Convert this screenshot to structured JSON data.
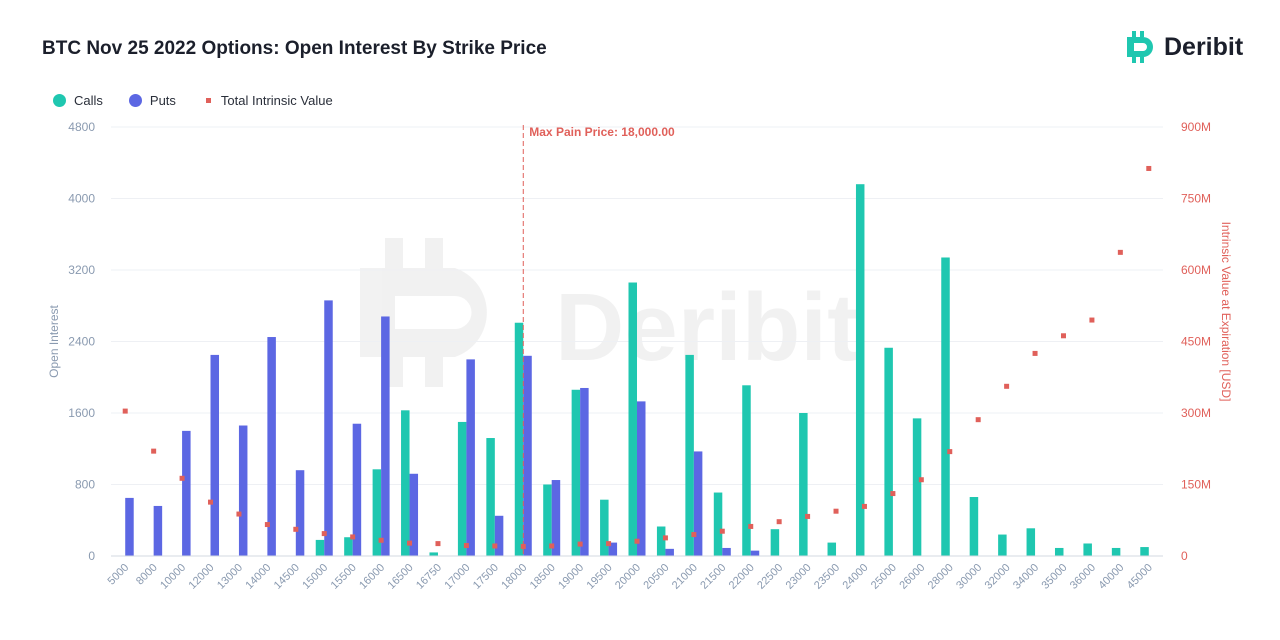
{
  "title": "BTC Nov 25 2022 Options: Open Interest By Strike Price",
  "brand": {
    "name": "Deribit",
    "icon": "deribit-logo-icon",
    "watermark": "Deribit"
  },
  "legend": [
    {
      "label": "Calls",
      "color": "#1fc7b0",
      "shape": "circle"
    },
    {
      "label": "Puts",
      "color": "#5c67e3",
      "shape": "circle"
    },
    {
      "label": "Total Intrinsic Value",
      "color": "#e0605a",
      "shape": "square"
    }
  ],
  "annotation": {
    "label": "Max Pain Price: 18,000.00",
    "strike": "18000"
  },
  "chart_data": {
    "type": "bar",
    "title": "BTC Nov 25 2022 Options: Open Interest By Strike Price",
    "xlabel": "",
    "ylabel": "Open Interest",
    "y2label": "Intrinsic Value at Expiration [USD]",
    "ylim": [
      0,
      4800
    ],
    "y2lim": [
      0,
      900000000
    ],
    "yticks": [
      "0",
      "800",
      "1600",
      "2400",
      "3200",
      "4000",
      "4800"
    ],
    "y2ticks": [
      "0",
      "150M",
      "300M",
      "450M",
      "600M",
      "750M",
      "900M"
    ],
    "categories": [
      "5000",
      "8000",
      "10000",
      "12000",
      "13000",
      "14000",
      "14500",
      "15000",
      "15500",
      "16000",
      "16500",
      "16750",
      "17000",
      "17500",
      "18000",
      "18500",
      "19000",
      "19500",
      "20000",
      "20500",
      "21000",
      "21500",
      "22000",
      "22500",
      "23000",
      "23500",
      "24000",
      "25000",
      "26000",
      "28000",
      "30000",
      "32000",
      "34000",
      "35000",
      "36000",
      "40000",
      "45000"
    ],
    "series": [
      {
        "name": "Calls",
        "type": "bar",
        "color": "#1fc7b0",
        "values": [
          0,
          0,
          0,
          0,
          0,
          0,
          0,
          180,
          210,
          970,
          1630,
          40,
          1500,
          1320,
          2610,
          800,
          1860,
          630,
          3060,
          330,
          2250,
          710,
          1910,
          300,
          1600,
          150,
          4160,
          2330,
          1540,
          3340,
          660,
          240,
          310,
          90,
          140,
          90,
          100
        ]
      },
      {
        "name": "Puts",
        "type": "bar",
        "color": "#5c67e3",
        "values": [
          650,
          560,
          1400,
          2250,
          1460,
          2450,
          960,
          2860,
          1480,
          2680,
          920,
          0,
          2200,
          450,
          2240,
          850,
          1880,
          150,
          1730,
          80,
          1170,
          90,
          60,
          0,
          0,
          0,
          0,
          0,
          0,
          0,
          0,
          0,
          0,
          0,
          0,
          0,
          0
        ]
      },
      {
        "name": "Total Intrinsic Value",
        "type": "scatter",
        "axis": "right",
        "color": "#e0605a",
        "values": [
          304000000,
          220000000,
          163000000,
          113000000,
          88000000,
          66000000,
          56000000,
          47000000,
          40000000,
          33000000,
          27000000,
          26000000,
          22000000,
          21000000,
          20000000,
          21000000,
          25000000,
          26000000,
          31000000,
          38000000,
          45000000,
          52000000,
          62000000,
          72000000,
          83000000,
          94000000,
          104000000,
          131000000,
          160000000,
          219000000,
          286000000,
          356000000,
          425000000,
          462000000,
          495000000,
          637000000,
          813000000
        ]
      }
    ],
    "grid": true,
    "legend_position": "top-left"
  }
}
